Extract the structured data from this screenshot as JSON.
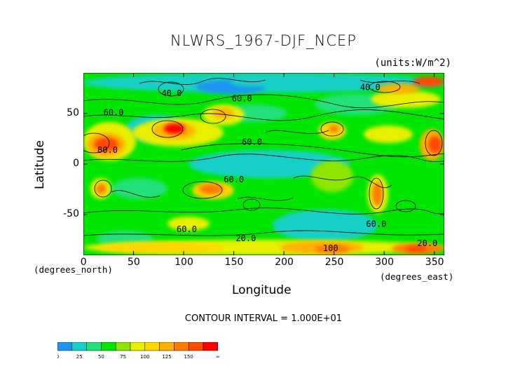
{
  "chart_data": {
    "type": "contour",
    "title": "NLWRS_1967-DJF_NCEP",
    "units": "(units:W/m^2)",
    "xlabel": "Longitude",
    "ylabel": "Latitude",
    "x_unit_label": "(degrees_east)",
    "y_unit_label": "(degrees_north)",
    "xlim": [
      0,
      360
    ],
    "ylim": [
      -90,
      90
    ],
    "x_ticks": [
      "0",
      "50",
      "100",
      "150",
      "200",
      "250",
      "300",
      "350"
    ],
    "y_ticks": [
      "50",
      "0",
      "-50"
    ],
    "contour_interval": "CONTOUR INTERVAL = 1.000E+01",
    "contour_labels": [
      {
        "text": "40.0",
        "lon": 78,
        "lat": 67
      },
      {
        "text": "60.0",
        "lon": 20,
        "lat": 48
      },
      {
        "text": "60.0",
        "lon": 148,
        "lat": 62
      },
      {
        "text": "60.0",
        "lon": 158,
        "lat": 19
      },
      {
        "text": "80.0",
        "lon": 14,
        "lat": 11
      },
      {
        "text": "60.0",
        "lon": 140,
        "lat": -18
      },
      {
        "text": "60.0",
        "lon": 282,
        "lat": -62
      },
      {
        "text": "60.0",
        "lon": 93,
        "lat": -67
      },
      {
        "text": "20.0",
        "lon": 152,
        "lat": -76
      },
      {
        "text": "100",
        "lon": 239,
        "lat": -86
      },
      {
        "text": "20.0",
        "lon": 333,
        "lat": -81
      },
      {
        "text": "40.0",
        "lon": 276,
        "lat": 73
      }
    ],
    "colorbar": {
      "levels": [
        "0",
        "25",
        "50",
        "75",
        "100",
        "125",
        "150",
        "∞"
      ],
      "colors": [
        "#1e96f0",
        "#15d0c8",
        "#22e07a",
        "#00e600",
        "#8ee600",
        "#e8f000",
        "#ffd600",
        "#ffb100",
        "#ff7c00",
        "#ff4a00",
        "#ff0000"
      ]
    }
  }
}
